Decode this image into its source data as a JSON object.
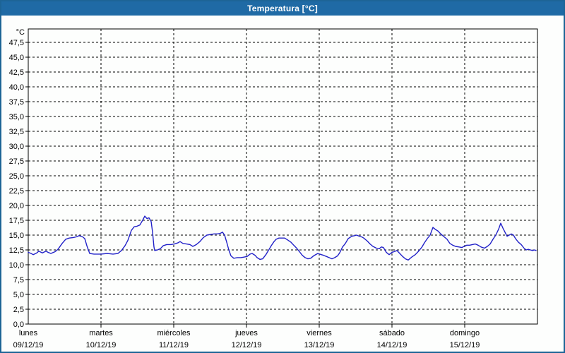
{
  "window": {
    "title": "Temperatura [°C]"
  },
  "colors": {
    "title_bar": "#1f6aa5",
    "window_border": "#1d6496",
    "plot_background": "#fdfefd",
    "line": "#2121c8",
    "grid": "#000000",
    "text": "#000000"
  },
  "chart_data": {
    "type": "line",
    "title": "Temperatura [°C]",
    "ylabel_unit": "°C",
    "ylim": [
      0,
      50
    ],
    "ytick_step": 2.5,
    "ytick_labels": [
      "0,0",
      "2,5",
      "5,0",
      "7,5",
      "10,0",
      "12,5",
      "15,0",
      "17,5",
      "20,0",
      "22,5",
      "25,0",
      "27,5",
      "30,0",
      "32,5",
      "35,0",
      "37,5",
      "40,0",
      "42,5",
      "45,0",
      "47,5"
    ],
    "grid": true,
    "x_days": [
      {
        "name": "lunes",
        "date": "09/12/19"
      },
      {
        "name": "martes",
        "date": "10/12/19"
      },
      {
        "name": "miércoles",
        "date": "11/12/19"
      },
      {
        "name": "jueves",
        "date": "12/12/19"
      },
      {
        "name": "viernes",
        "date": "13/12/19"
      },
      {
        "name": "sábado",
        "date": "14/12/19"
      },
      {
        "name": "domingo",
        "date": "15/12/19"
      }
    ],
    "series": [
      {
        "name": "Temperatura",
        "color": "#2121c8",
        "points": [
          [
            0.0,
            12.1
          ],
          [
            0.039,
            11.9
          ],
          [
            0.068,
            11.7
          ],
          [
            0.117,
            12.0
          ],
          [
            0.146,
            12.3
          ],
          [
            0.194,
            12.0
          ],
          [
            0.243,
            12.3
          ],
          [
            0.272,
            12.1
          ],
          [
            0.311,
            11.9
          ],
          [
            0.369,
            12.2
          ],
          [
            0.408,
            12.6
          ],
          [
            0.466,
            13.6
          ],
          [
            0.515,
            14.3
          ],
          [
            0.563,
            14.5
          ],
          [
            0.621,
            14.6
          ],
          [
            0.66,
            14.7
          ],
          [
            0.699,
            14.9
          ],
          [
            0.748,
            14.7
          ],
          [
            0.777,
            14.4
          ],
          [
            0.806,
            13.2
          ],
          [
            0.845,
            11.9
          ],
          [
            0.903,
            11.8
          ],
          [
            1.0,
            11.8
          ],
          [
            1.087,
            11.9
          ],
          [
            1.165,
            11.8
          ],
          [
            1.233,
            11.9
          ],
          [
            1.282,
            12.4
          ],
          [
            1.33,
            13.2
          ],
          [
            1.369,
            14.1
          ],
          [
            1.417,
            15.8
          ],
          [
            1.456,
            16.4
          ],
          [
            1.495,
            16.5
          ],
          [
            1.534,
            16.7
          ],
          [
            1.573,
            17.5
          ],
          [
            1.602,
            18.2
          ],
          [
            1.631,
            17.8
          ],
          [
            1.66,
            17.9
          ],
          [
            1.689,
            17.3
          ],
          [
            1.709,
            15.5
          ],
          [
            1.728,
            13.0
          ],
          [
            1.738,
            12.4
          ],
          [
            1.777,
            12.5
          ],
          [
            1.816,
            12.7
          ],
          [
            1.854,
            13.2
          ],
          [
            1.903,
            13.4
          ],
          [
            1.961,
            13.4
          ],
          [
            2.01,
            13.5
          ],
          [
            2.058,
            13.7
          ],
          [
            2.087,
            13.9
          ],
          [
            2.126,
            13.6
          ],
          [
            2.175,
            13.5
          ],
          [
            2.223,
            13.4
          ],
          [
            2.262,
            13.1
          ],
          [
            2.311,
            13.4
          ],
          [
            2.359,
            13.9
          ],
          [
            2.408,
            14.6
          ],
          [
            2.456,
            15.0
          ],
          [
            2.505,
            15.1
          ],
          [
            2.553,
            15.2
          ],
          [
            2.602,
            15.2
          ],
          [
            2.641,
            15.3
          ],
          [
            2.67,
            15.5
          ],
          [
            2.699,
            15.0
          ],
          [
            2.728,
            13.8
          ],
          [
            2.757,
            12.5
          ],
          [
            2.786,
            11.5
          ],
          [
            2.825,
            11.1
          ],
          [
            2.874,
            11.2
          ],
          [
            2.922,
            11.2
          ],
          [
            2.971,
            11.3
          ],
          [
            3.01,
            11.4
          ],
          [
            3.049,
            11.8
          ],
          [
            3.078,
            11.9
          ],
          [
            3.117,
            11.6
          ],
          [
            3.146,
            11.2
          ],
          [
            3.184,
            10.9
          ],
          [
            3.223,
            11.0
          ],
          [
            3.272,
            11.8
          ],
          [
            3.311,
            12.6
          ],
          [
            3.34,
            13.2
          ],
          [
            3.379,
            13.9
          ],
          [
            3.408,
            14.3
          ],
          [
            3.447,
            14.5
          ],
          [
            3.485,
            14.5
          ],
          [
            3.524,
            14.5
          ],
          [
            3.563,
            14.2
          ],
          [
            3.612,
            13.8
          ],
          [
            3.65,
            13.3
          ],
          [
            3.689,
            12.8
          ],
          [
            3.728,
            12.2
          ],
          [
            3.767,
            11.6
          ],
          [
            3.806,
            11.2
          ],
          [
            3.845,
            11.0
          ],
          [
            3.883,
            11.1
          ],
          [
            3.922,
            11.5
          ],
          [
            3.981,
            11.9
          ],
          [
            4.029,
            11.7
          ],
          [
            4.058,
            11.6
          ],
          [
            4.097,
            11.4
          ],
          [
            4.136,
            11.2
          ],
          [
            4.175,
            11.0
          ],
          [
            4.214,
            11.2
          ],
          [
            4.252,
            11.5
          ],
          [
            4.281,
            12.0
          ],
          [
            4.32,
            13.0
          ],
          [
            4.359,
            13.6
          ],
          [
            4.398,
            14.4
          ],
          [
            4.447,
            14.8
          ],
          [
            4.485,
            14.9
          ],
          [
            4.515,
            15.0
          ],
          [
            4.553,
            14.8
          ],
          [
            4.583,
            14.7
          ],
          [
            4.612,
            14.5
          ],
          [
            4.66,
            14.0
          ],
          [
            4.699,
            13.5
          ],
          [
            4.738,
            13.1
          ],
          [
            4.786,
            12.8
          ],
          [
            4.825,
            12.7
          ],
          [
            4.854,
            13.0
          ],
          [
            4.883,
            12.9
          ],
          [
            4.922,
            12.1
          ],
          [
            4.961,
            11.7
          ],
          [
            5.0,
            12.1
          ],
          [
            5.029,
            12.2
          ],
          [
            5.068,
            12.4
          ],
          [
            5.107,
            11.9
          ],
          [
            5.146,
            11.4
          ],
          [
            5.184,
            11.0
          ],
          [
            5.223,
            10.8
          ],
          [
            5.272,
            11.3
          ],
          [
            5.32,
            11.7
          ],
          [
            5.359,
            12.2
          ],
          [
            5.408,
            12.9
          ],
          [
            5.447,
            13.7
          ],
          [
            5.485,
            14.4
          ],
          [
            5.524,
            15.0
          ],
          [
            5.563,
            16.3
          ],
          [
            5.592,
            16.0
          ],
          [
            5.631,
            15.7
          ],
          [
            5.68,
            15.1
          ],
          [
            5.718,
            14.7
          ],
          [
            5.757,
            14.3
          ],
          [
            5.796,
            13.6
          ],
          [
            5.835,
            13.3
          ],
          [
            5.874,
            13.1
          ],
          [
            5.922,
            13.0
          ],
          [
            5.961,
            12.9
          ],
          [
            5.99,
            13.1
          ],
          [
            6.029,
            13.3
          ],
          [
            6.068,
            13.3
          ],
          [
            6.107,
            13.4
          ],
          [
            6.146,
            13.5
          ],
          [
            6.184,
            13.3
          ],
          [
            6.223,
            13.0
          ],
          [
            6.272,
            12.8
          ],
          [
            6.311,
            13.1
          ],
          [
            6.35,
            13.5
          ],
          [
            6.388,
            14.3
          ],
          [
            6.427,
            15.0
          ],
          [
            6.466,
            16.0
          ],
          [
            6.495,
            17.0
          ],
          [
            6.524,
            16.2
          ],
          [
            6.553,
            15.5
          ],
          [
            6.583,
            14.8
          ],
          [
            6.612,
            15.0
          ],
          [
            6.641,
            15.2
          ],
          [
            6.67,
            15.0
          ],
          [
            6.699,
            14.4
          ],
          [
            6.738,
            13.8
          ],
          [
            6.777,
            13.4
          ],
          [
            6.816,
            12.8
          ],
          [
            6.845,
            12.5
          ],
          [
            6.874,
            12.6
          ],
          [
            6.903,
            12.5
          ],
          [
            6.932,
            12.4
          ],
          [
            6.961,
            12.5
          ],
          [
            6.981,
            12.4
          ]
        ]
      }
    ]
  }
}
